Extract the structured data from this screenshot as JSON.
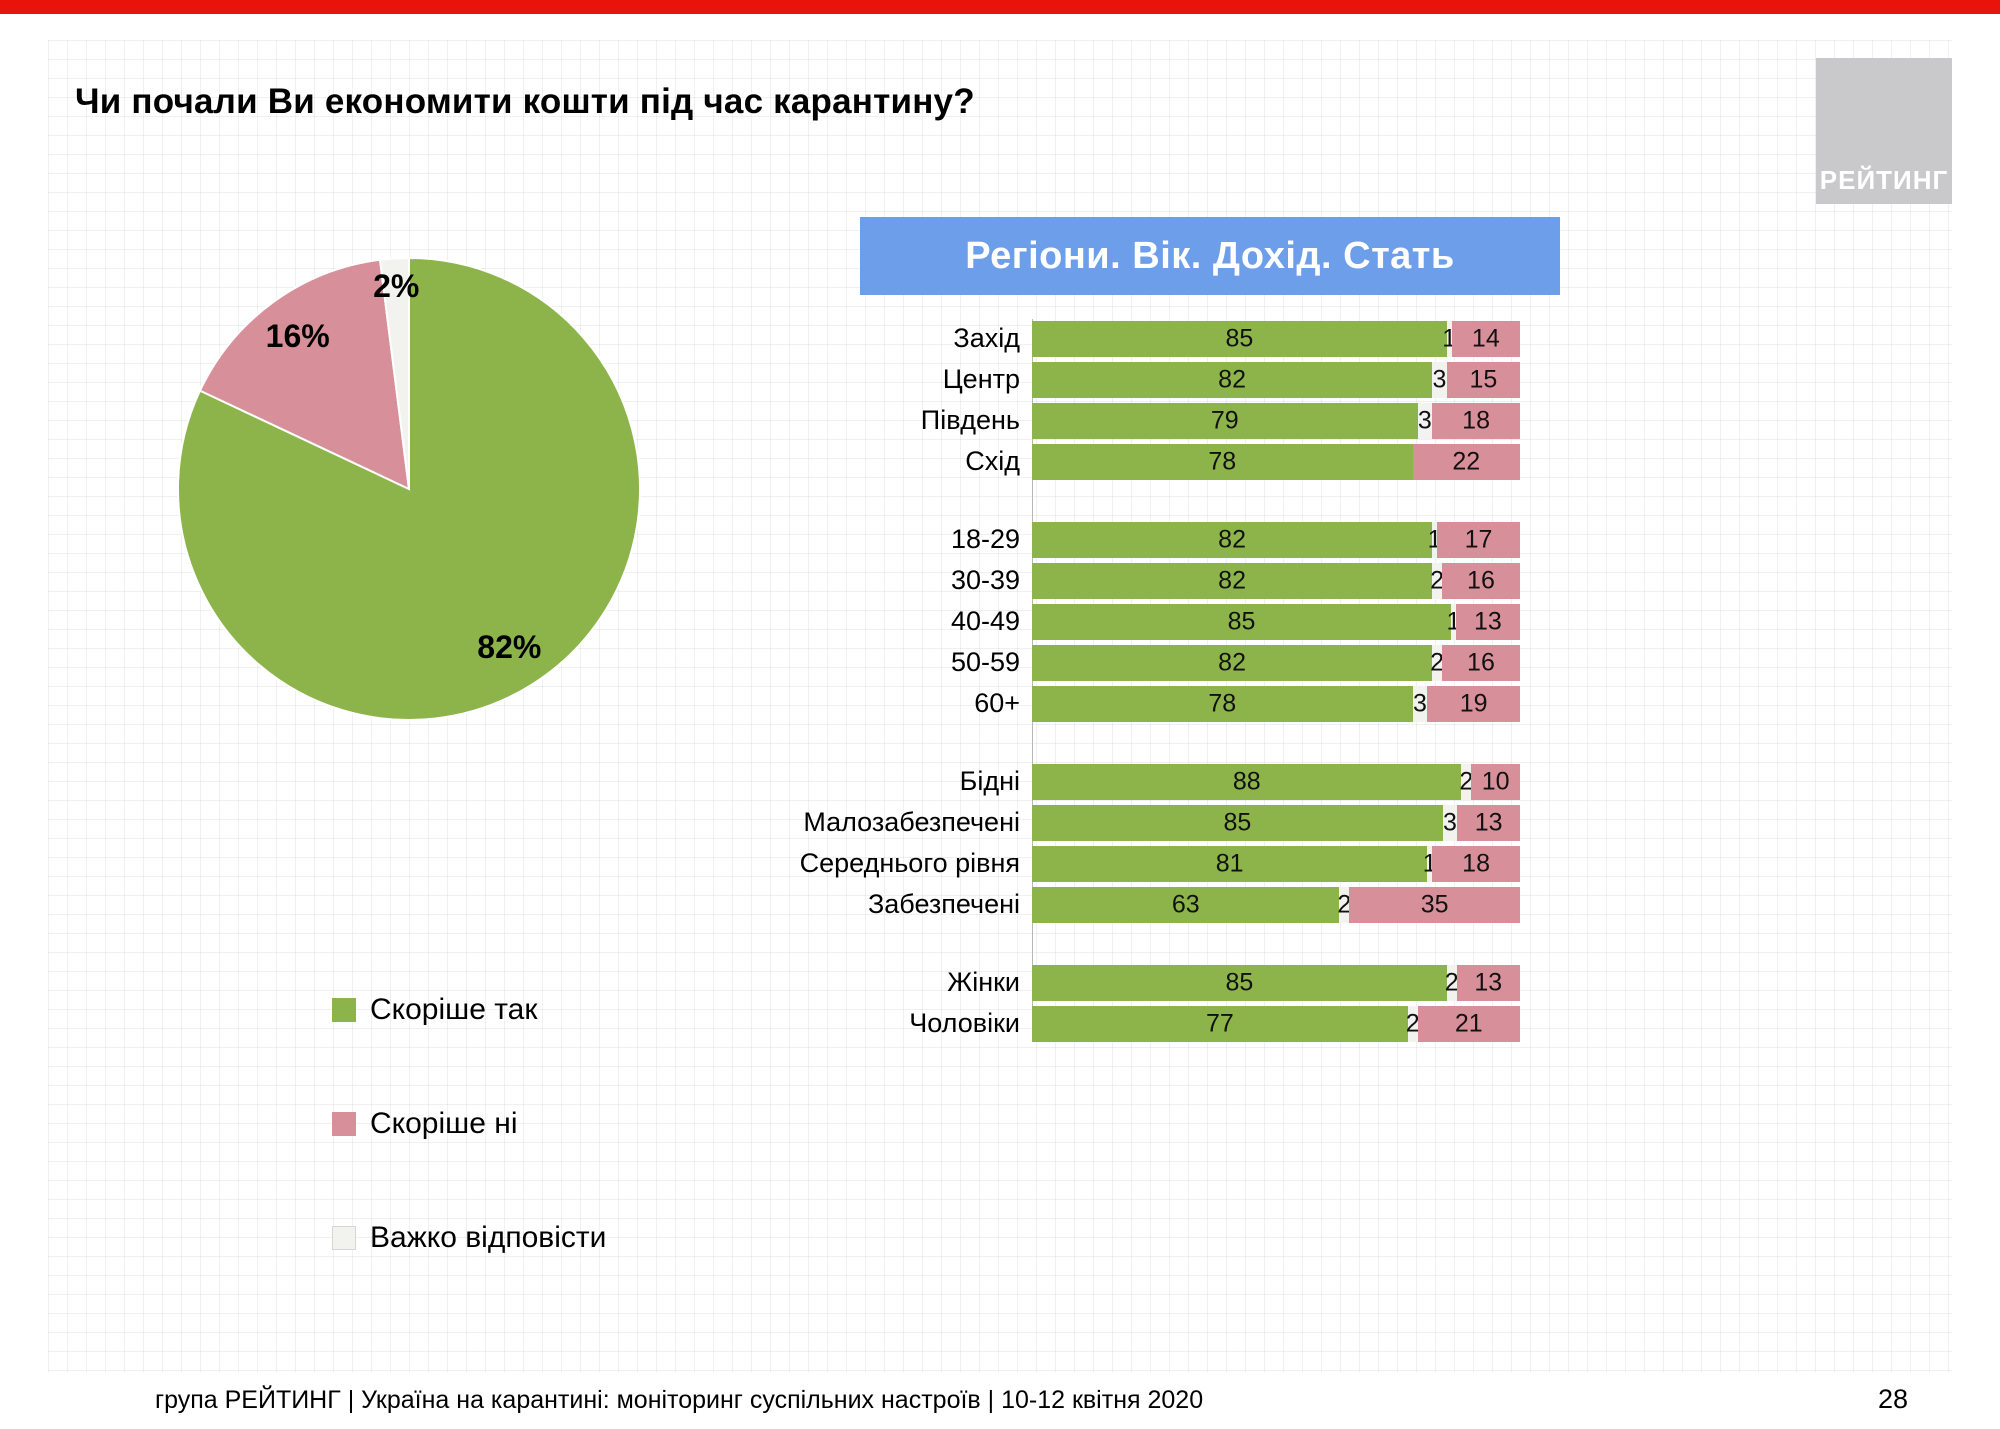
{
  "page": {
    "logo_text": "РЕЙТИНГ",
    "footer": "група РЕЙТИНГ | Україна на карантині: моніторинг суспільних настроїв  | 10-12 квітня  2020",
    "page_number": "28"
  },
  "colors": {
    "top_bar_red": "#E8140C",
    "header_blue": "#6D9EEA",
    "yes_green": "#8CB44A",
    "no_pink": "#D7909A",
    "dk_white": "#F2F2EE",
    "logo_gray": "#C9C9CB"
  },
  "chart_data": [
    {
      "type": "pie",
      "title": "Чи почали Ви економити кошти під час карантину?",
      "labels": [
        "Скоріше  так",
        "Скоріше  ні",
        "Важко відповісти"
      ],
      "values": [
        82,
        16,
        2
      ],
      "value_labels": [
        "82%",
        "16%",
        "2%"
      ],
      "colors": [
        "#8CB44A",
        "#D7909A",
        "#F2F2EE"
      ],
      "start_angle": "12 o'clock",
      "direction": "clockwise",
      "legend_position": "below-left"
    },
    {
      "type": "bar",
      "subtype": "horizontal-stacked-100",
      "title": "Регіони. Вік. Дохід. Стать",
      "series": [
        "Скоріше так",
        "Важко відповісти",
        "Скоріше ні"
      ],
      "colors": [
        "#8CB44A",
        "#F2F2EE",
        "#D7909A"
      ],
      "xlim": [
        0,
        100
      ],
      "grid": false,
      "groups": [
        {
          "rows": [
            {
              "label": "Захід",
              "values": [
                85,
                1,
                14
              ]
            },
            {
              "label": "Центр",
              "values": [
                82,
                3,
                15
              ]
            },
            {
              "label": "Південь",
              "values": [
                79,
                3,
                18
              ]
            },
            {
              "label": "Схід",
              "values": [
                78,
                0,
                22
              ]
            }
          ]
        },
        {
          "rows": [
            {
              "label": "18-29",
              "values": [
                82,
                1,
                17
              ]
            },
            {
              "label": "30-39",
              "values": [
                82,
                2,
                16
              ]
            },
            {
              "label": "40-49",
              "values": [
                85,
                1,
                13
              ]
            },
            {
              "label": "50-59",
              "values": [
                82,
                2,
                16
              ]
            },
            {
              "label": "60+",
              "values": [
                78,
                3,
                19
              ]
            }
          ]
        },
        {
          "rows": [
            {
              "label": "Бідні",
              "values": [
                88,
                2,
                10
              ]
            },
            {
              "label": "Малозабезпечені",
              "values": [
                85,
                3,
                13
              ]
            },
            {
              "label": "Середнього рівня",
              "values": [
                81,
                1,
                18
              ]
            },
            {
              "label": "Забезпечені",
              "values": [
                63,
                2,
                35
              ]
            }
          ]
        },
        {
          "rows": [
            {
              "label": "Жінки",
              "values": [
                85,
                2,
                13
              ]
            },
            {
              "label": "Чоловіки",
              "values": [
                77,
                2,
                21
              ]
            }
          ]
        }
      ]
    }
  ]
}
